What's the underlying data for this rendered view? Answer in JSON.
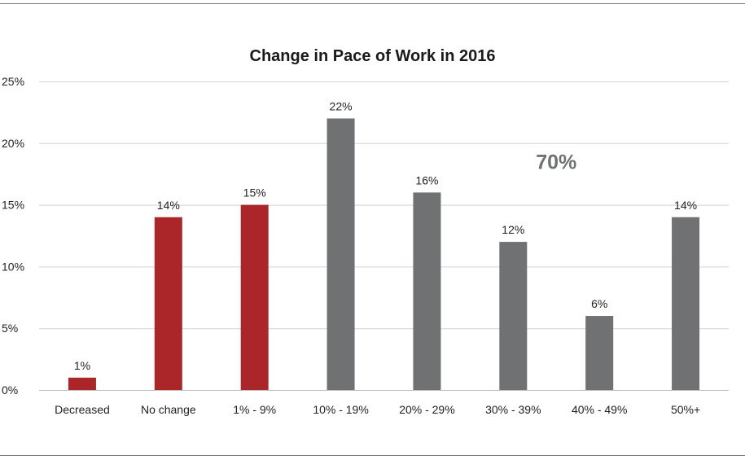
{
  "chart_data": {
    "type": "bar",
    "title": "Change in Pace of Work in 2016",
    "xlabel": "",
    "ylabel": "",
    "categories": [
      "Decreased",
      "No change",
      "1% - 9%",
      "10% - 19%",
      "20% - 29%",
      "30% - 39%",
      "40% - 49%",
      "50%+"
    ],
    "values": [
      1,
      14,
      15,
      22,
      16,
      12,
      6,
      14
    ],
    "data_labels": [
      "1%",
      "14%",
      "15%",
      "22%",
      "16%",
      "12%",
      "6%",
      "14%"
    ],
    "ylim": [
      0,
      25
    ],
    "yticks": [
      0,
      5,
      10,
      15,
      20,
      25
    ],
    "ytick_labels": [
      "0%",
      "5%",
      "10%",
      "15%",
      "20%",
      "25%"
    ],
    "grid": true,
    "legend": "none",
    "bar_colors": [
      "#ab2629",
      "#ab2629",
      "#ab2629",
      "#6f7172",
      "#6f7172",
      "#6f7172",
      "#6f7172",
      "#6f7172"
    ],
    "annotation": {
      "text": "70%",
      "color": "#6f7172"
    }
  }
}
